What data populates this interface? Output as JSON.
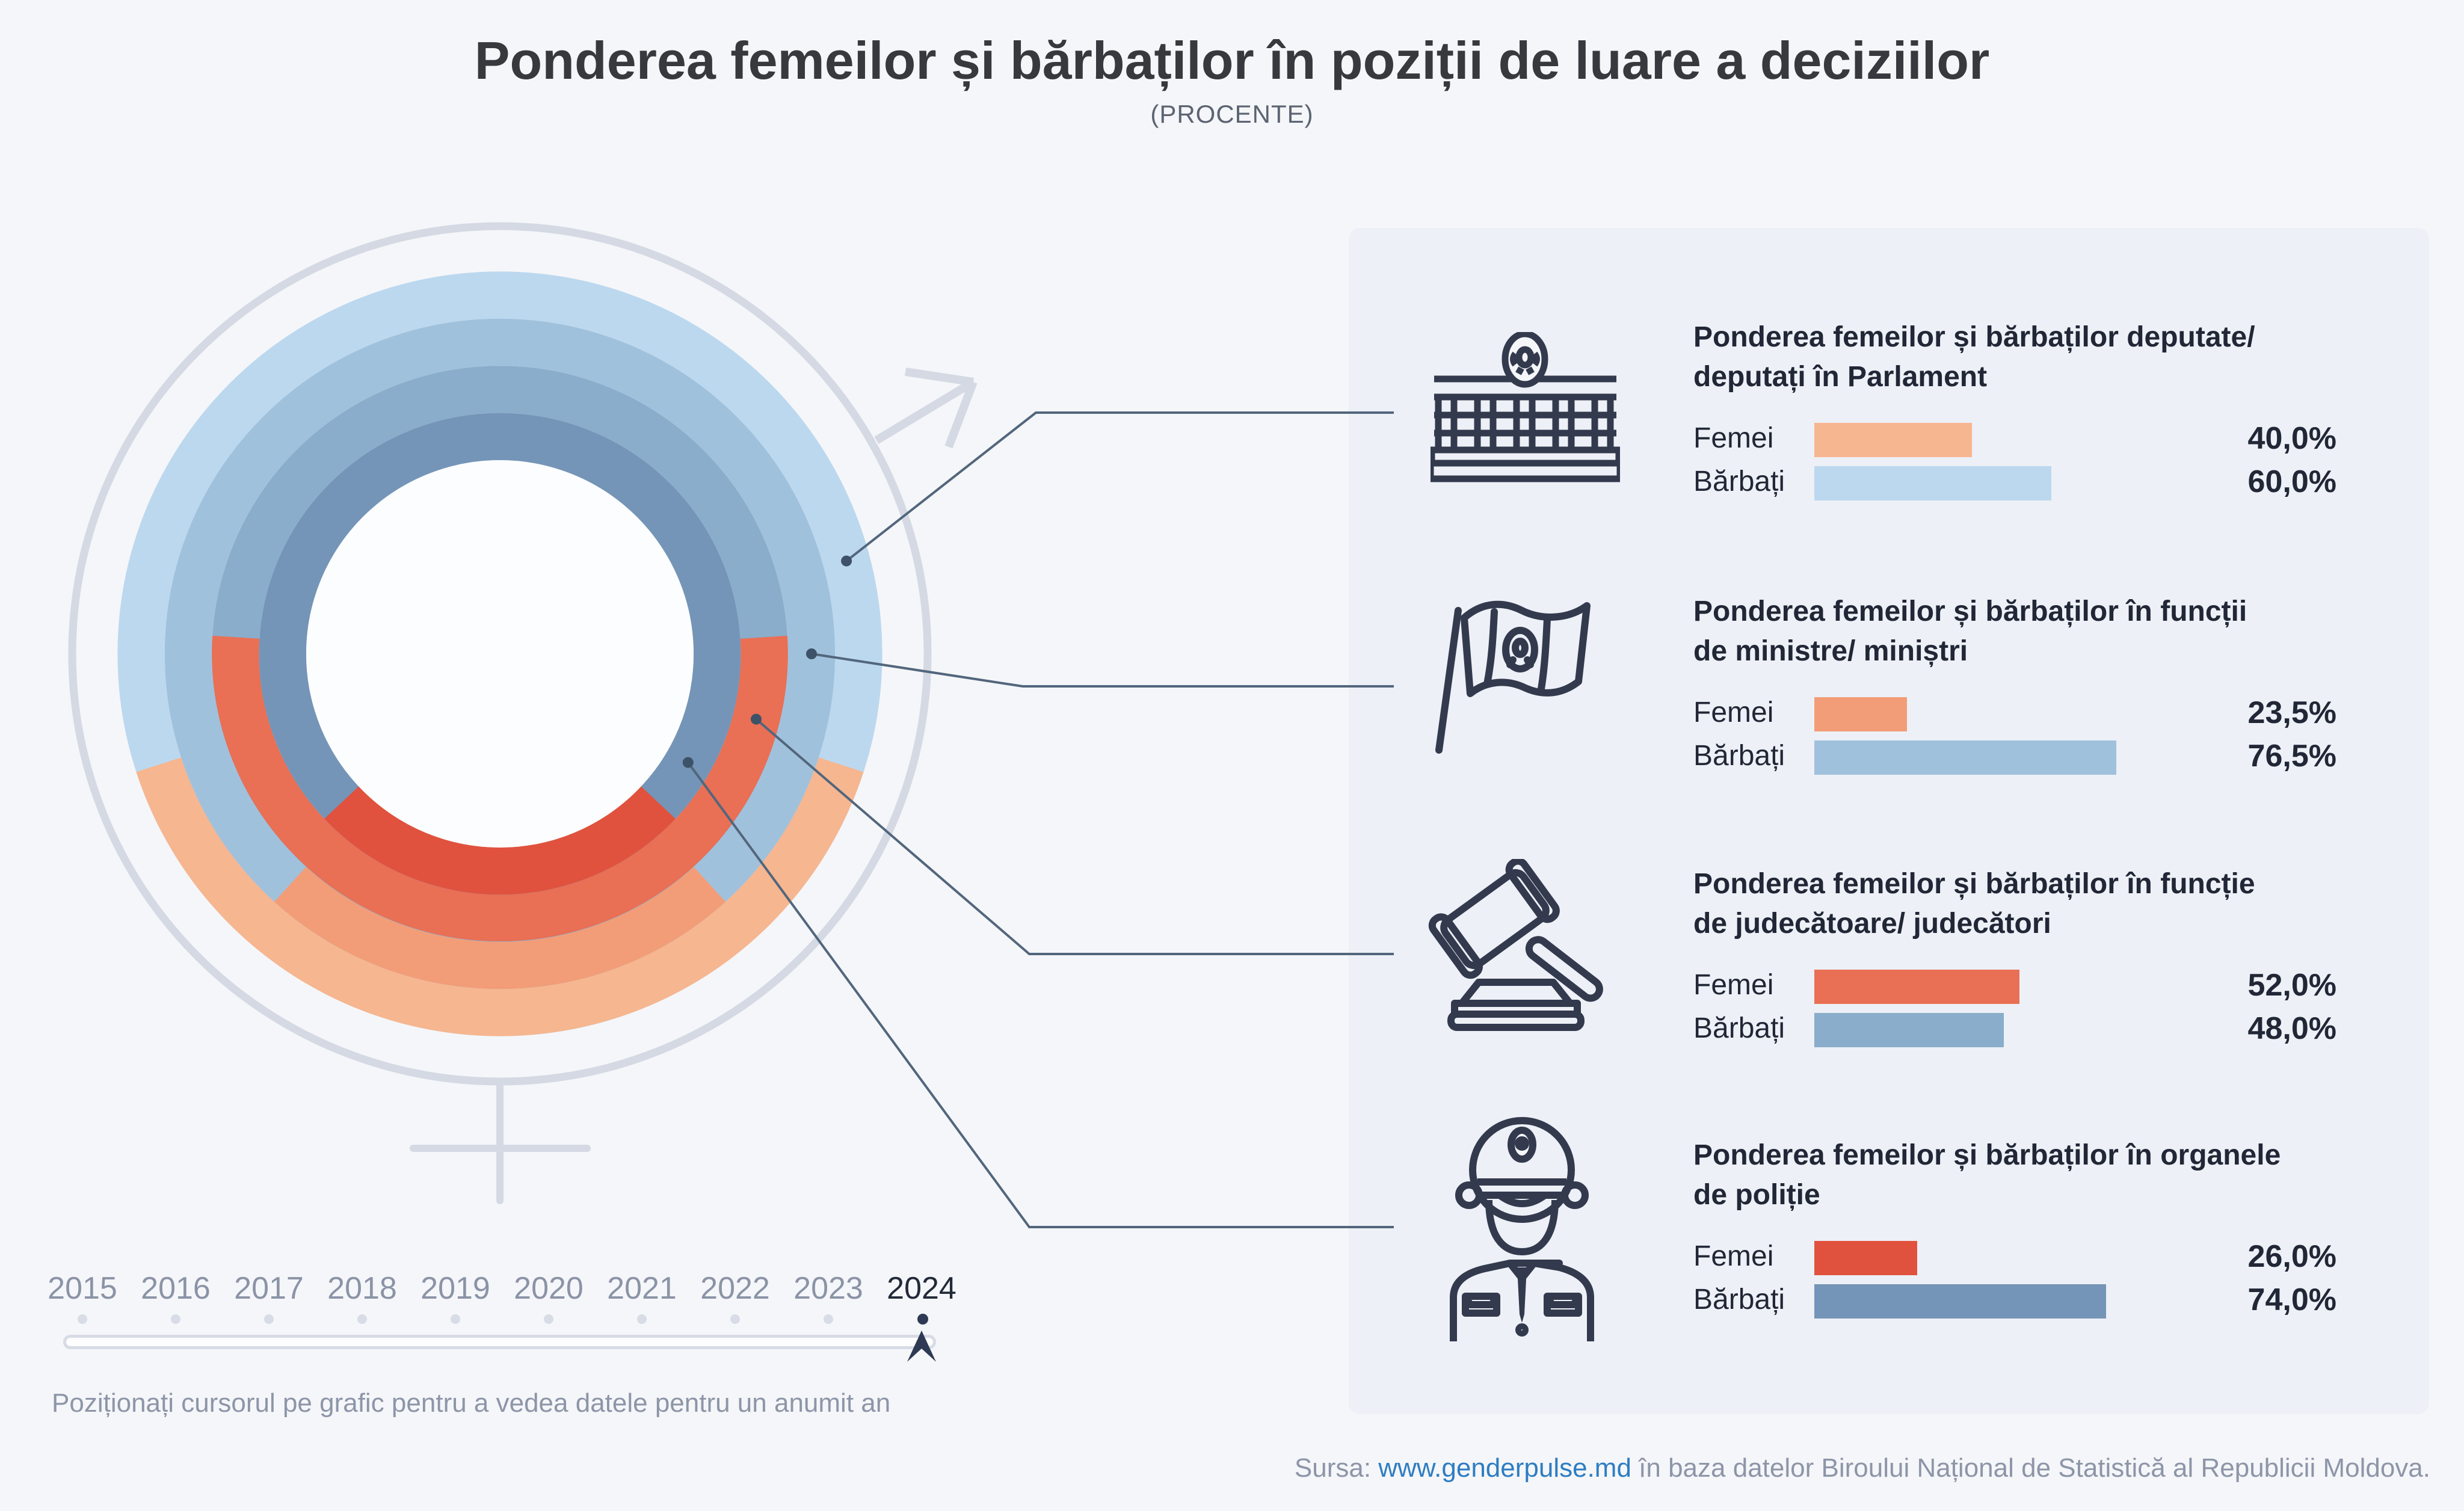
{
  "title": "Ponderea femeilor și bărbaților în poziții de luare a deciziilor",
  "subtitle": "(PROCENTE)",
  "hint": "Poziționați cursorul pe grafic pentru a vedea datele pentru un anumit an",
  "source": {
    "prefix": "Sursa: ",
    "link": "www.genderpulse.md",
    "suffix": " în baza datelor Biroului Național de Statistică al Republicii Moldova."
  },
  "timeline": {
    "years": [
      "2015",
      "2016",
      "2017",
      "2018",
      "2019",
      "2020",
      "2021",
      "2022",
      "2023",
      "2024"
    ],
    "selected_year": "2024"
  },
  "categories": [
    {
      "id": "parliament",
      "icon": "parliament-building-icon",
      "title_line1": "Ponderea femeilor și bărbaților deputate/",
      "title_line2": "deputați în Parlament",
      "female_label": "Femei",
      "male_label": "Bărbați",
      "female_value": "40,0%",
      "male_value": "60,0%",
      "female_pct": 40.0,
      "male_pct": 60.0,
      "female_color": "#f6b690",
      "male_color": "#bcd8ef"
    },
    {
      "id": "ministers",
      "icon": "moldova-flag-icon",
      "title_line1": "Ponderea femeilor și bărbaților în funcții",
      "title_line2": "de ministre/ miniștri",
      "female_label": "Femei",
      "male_label": "Bărbați",
      "female_value": "23,5%",
      "male_value": "76,5%",
      "female_pct": 23.5,
      "male_pct": 76.5,
      "female_color": "#f29d77",
      "male_color": "#a0c1dc"
    },
    {
      "id": "judges",
      "icon": "gavel-icon",
      "title_line1": "Ponderea femeilor și bărbaților în funcție",
      "title_line2": "de judecătoare/ judecători",
      "female_label": "Femei",
      "male_label": "Bărbați",
      "female_value": "52,0%",
      "male_value": "48,0%",
      "female_pct": 52.0,
      "male_pct": 48.0,
      "female_color": "#e96f55",
      "male_color": "#89adcb"
    },
    {
      "id": "police",
      "icon": "police-officer-icon",
      "title_line1": "Ponderea femeilor și bărbaților în organele",
      "title_line2": "de poliție",
      "female_label": "Femei",
      "male_label": "Bărbați",
      "female_value": "26,0%",
      "male_value": "74,0%",
      "female_pct": 26.0,
      "male_pct": 74.0,
      "female_color": "#e0523e",
      "male_color": "#7495b7"
    }
  ],
  "chart_data": {
    "type": "donut",
    "title": "Ponderea femeilor și bărbaților în poziții de luare a deciziilor (procente)",
    "year": "2024",
    "ring_order": "outer_to_inner",
    "female_segment_position": "centered_at_bottom",
    "rings": [
      {
        "category": "Deputate/deputați în Parlament",
        "femei": 40.0,
        "barbati": 60.0
      },
      {
        "category": "Funcții de ministre/miniștri",
        "femei": 23.5,
        "barbati": 76.5
      },
      {
        "category": "Funcție de judecătoare/judecători",
        "femei": 52.0,
        "barbati": 48.0
      },
      {
        "category": "Organele de poliție",
        "femei": 26.0,
        "barbati": 74.0
      }
    ],
    "timeline_years": [
      2015,
      2016,
      2017,
      2018,
      2019,
      2020,
      2021,
      2022,
      2023,
      2024
    ],
    "selected_year": 2024
  }
}
